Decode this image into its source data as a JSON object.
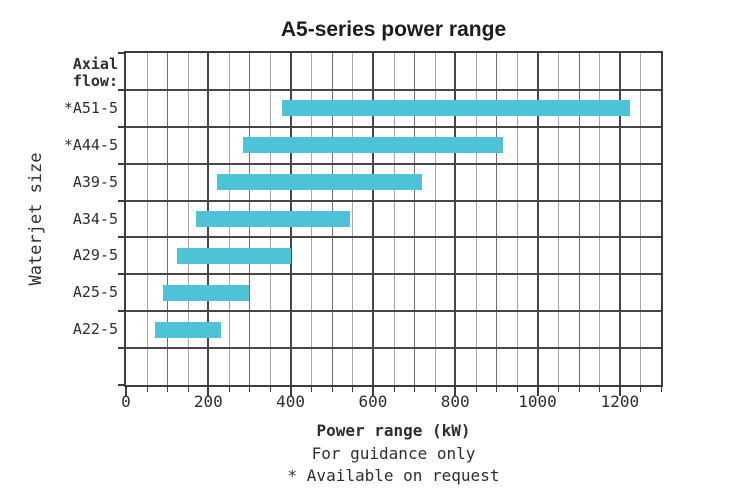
{
  "chart_data": {
    "type": "bar",
    "subtype": "horizontal-range-bars",
    "title": "A5-series power range",
    "xlabel": "Power range (kW)",
    "ylabel": "Waterjet size",
    "group_label": "Axial flow:",
    "group_label_lines": [
      "Axial",
      "flow:"
    ],
    "categories": [
      "*A51-5",
      "*A44-5",
      "A39-5",
      "A34-5",
      "A29-5",
      "A25-5",
      "A22-5"
    ],
    "ranges_kw": [
      [
        380,
        1225
      ],
      [
        285,
        915
      ],
      [
        220,
        720
      ],
      [
        170,
        545
      ],
      [
        125,
        400
      ],
      [
        90,
        300
      ],
      [
        70,
        230
      ]
    ],
    "xlim": [
      0,
      1300
    ],
    "x_ticks": [
      0,
      200,
      400,
      600,
      800,
      1000,
      1200
    ],
    "grid_step_minor_kw": 50,
    "grid": "on",
    "legend": "none",
    "footnotes": [
      "For guidance only",
      "* Available on request"
    ],
    "bar_color": "#4ec3d8"
  },
  "colors": {
    "bar": "#4ec3d8",
    "grid_minor": "#aaaaaa",
    "grid_mid": "#6e6e6e",
    "grid_major": "#474747",
    "border": "#3d3d3d",
    "text": "#2e2e2e"
  }
}
